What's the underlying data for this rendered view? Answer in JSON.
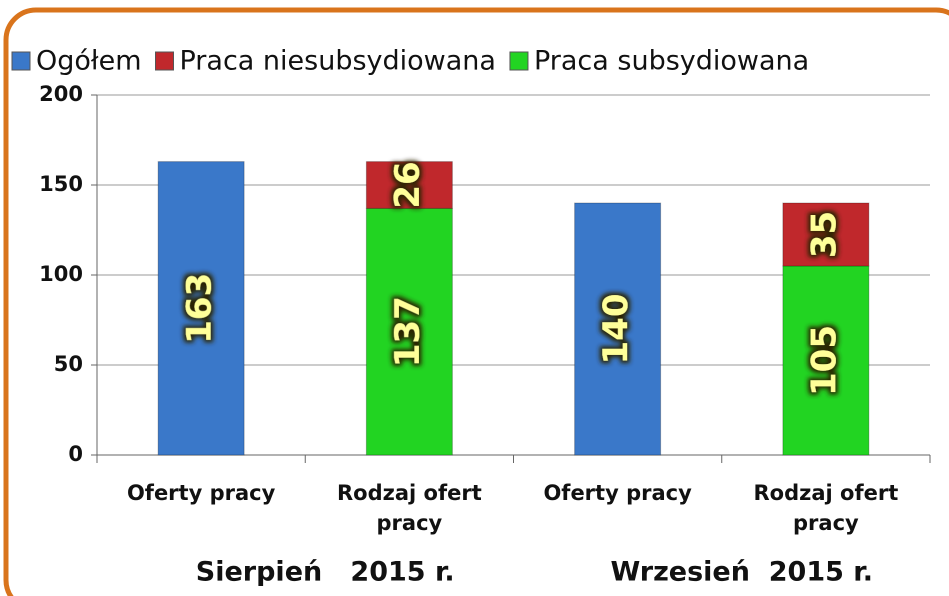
{
  "chart_data": {
    "type": "stacked_bar",
    "categories": [
      "Oferty pracy",
      "Rodzaj ofert pracy",
      "Oferty pracy",
      "Rodzaj ofert pracy"
    ],
    "groups": [
      {
        "label": "Sierpień   2015 r.",
        "categories": [
          0,
          1
        ]
      },
      {
        "label": "Wrzesień  2015 r.",
        "categories": [
          2,
          3
        ]
      }
    ],
    "series": [
      {
        "name": "Ogółem",
        "color": "#3a78c9",
        "values": [
          163,
          null,
          140,
          null
        ]
      },
      {
        "name": "Praca niesubsydiowana",
        "color": "#c0282c",
        "values": [
          null,
          26,
          null,
          35
        ]
      },
      {
        "name": "Praca subsydiowana",
        "color": "#22d422",
        "values": [
          null,
          137,
          null,
          105
        ]
      }
    ],
    "ylim": [
      0,
      200
    ],
    "yticks": [
      0,
      50,
      100,
      150,
      200
    ],
    "grid": true,
    "legend": "top"
  }
}
